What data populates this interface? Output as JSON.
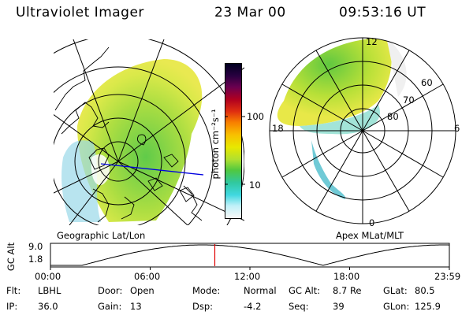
{
  "header": {
    "instrument": "Ultraviolet Imager",
    "date": "23 Mar 00",
    "time": "09:53:16 UT"
  },
  "left_map": {
    "caption": "Geographic Lat/Lon"
  },
  "right_map": {
    "caption": "Apex MLat/MLT",
    "mlt_labels": [
      "12",
      "18",
      "6",
      "0"
    ],
    "lat_labels": [
      "60",
      "70",
      "80"
    ]
  },
  "colorbar": {
    "label": "photon cm⁻²s⁻¹",
    "ticks": [
      "100",
      "10"
    ],
    "colors": [
      "#000020",
      "#2a0040",
      "#6a0050",
      "#b00020",
      "#e03010",
      "#f88000",
      "#f8c000",
      "#e8e800",
      "#b0e030",
      "#50c840",
      "#30c8a0",
      "#40d8e0",
      "#c0f0f8",
      "#f8f8f8"
    ]
  },
  "altitude_plot": {
    "ylabel": "GC Alt",
    "yticks": [
      "9.0",
      "1.8"
    ],
    "xticks": [
      "00:00",
      "06:00",
      "12:00",
      "18:00",
      "23:59"
    ],
    "marker_hour": 9.888
  },
  "status": {
    "row1": [
      {
        "k": "Flt:",
        "v": "LBHL"
      },
      {
        "k": "Door:",
        "v": "Open"
      },
      {
        "k": "Mode:",
        "v": "Normal"
      },
      {
        "k": "GC Alt:",
        "v": "8.7 Re"
      },
      {
        "k": "GLat:",
        "v": "80.5"
      }
    ],
    "row2": [
      {
        "k": "IP:",
        "v": "36.0"
      },
      {
        "k": "Gain:",
        "v": "13"
      },
      {
        "k": "Dsp:",
        "v": "-4.2"
      },
      {
        "k": "Seq:",
        "v": "39"
      },
      {
        "k": "GLon:",
        "v": "125.9"
      }
    ]
  }
}
